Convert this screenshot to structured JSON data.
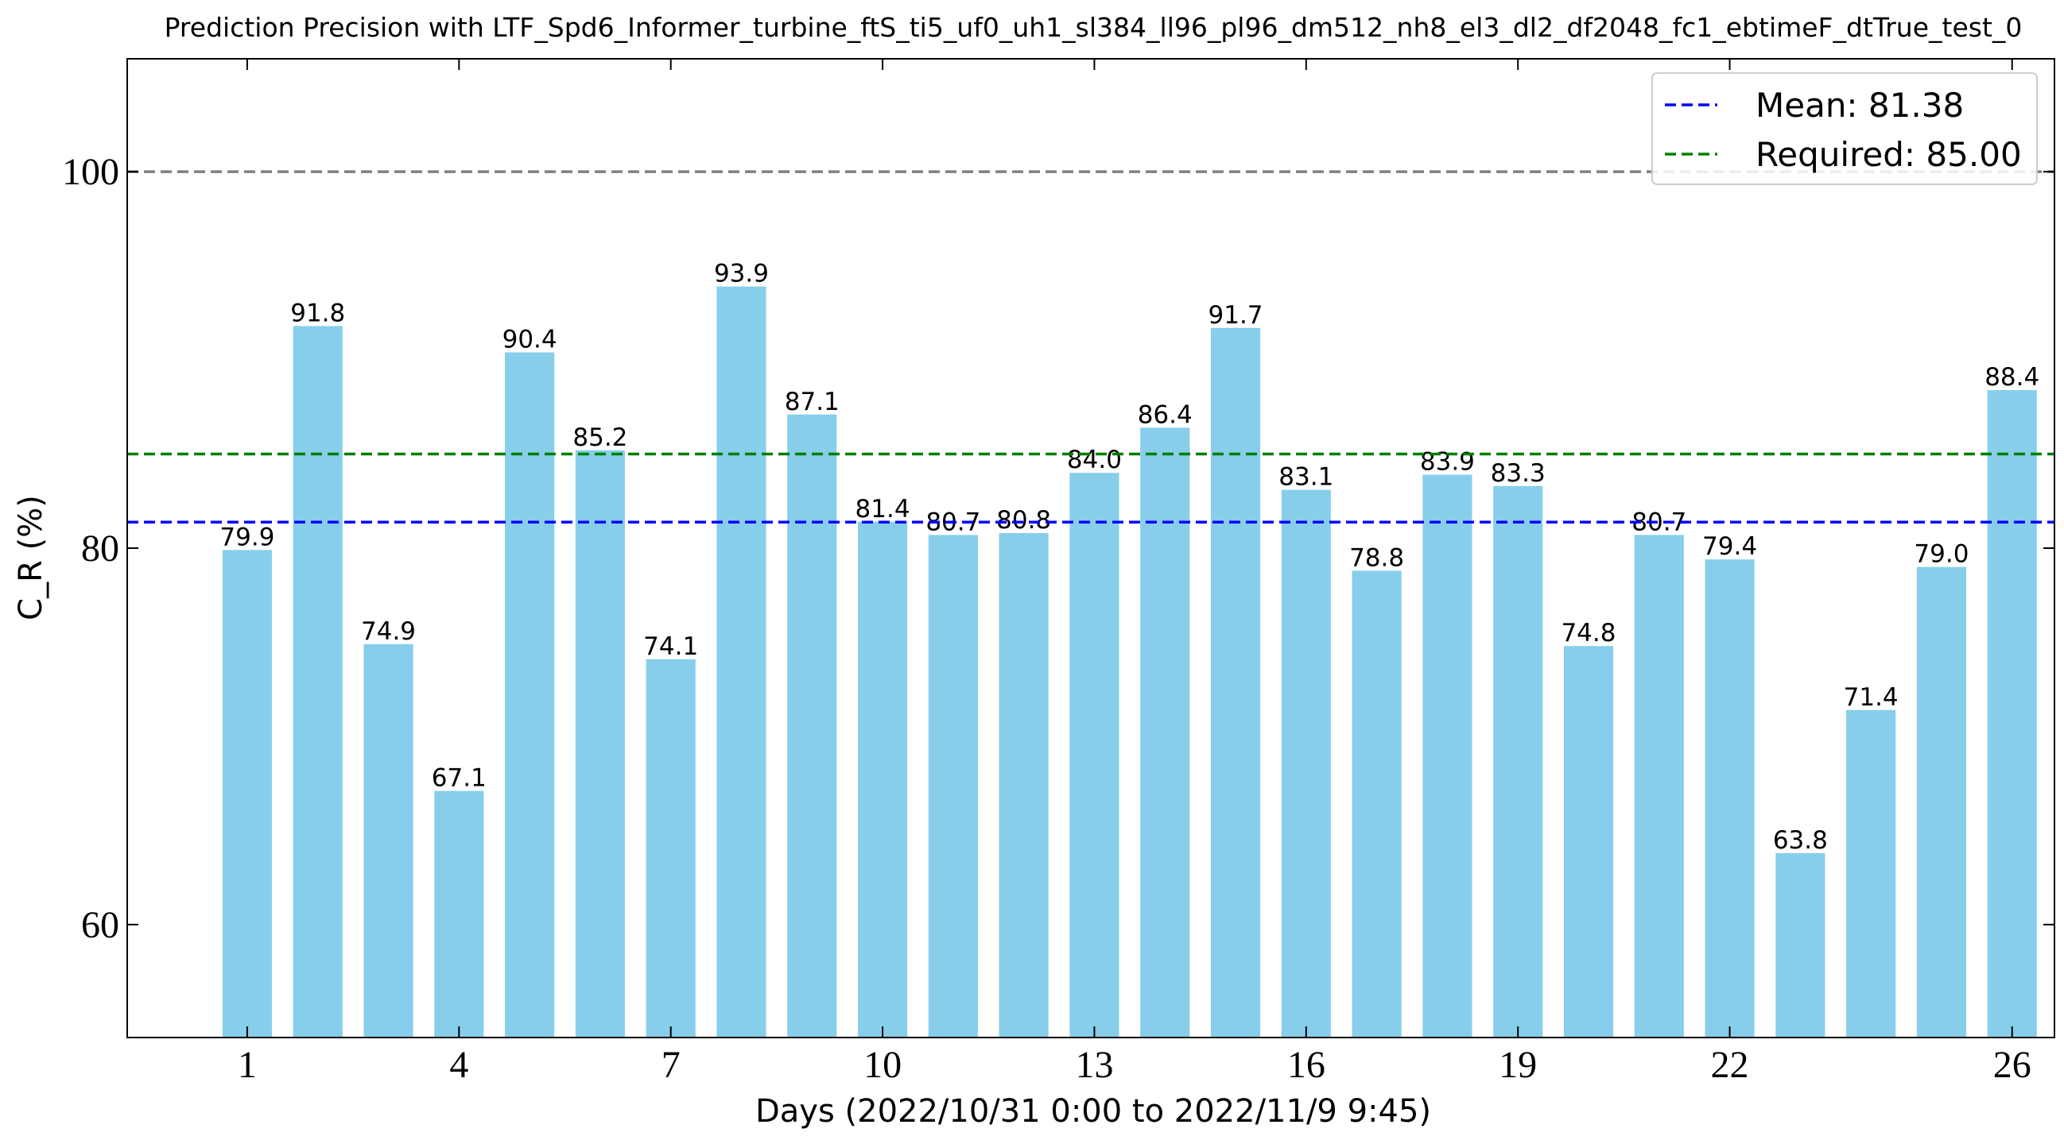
{
  "chart_data": {
    "type": "bar",
    "title": "Prediction Precision with LTF_Spd6_Informer_turbine_ftS_ti5_uf0_uh1_sl384_ll96_pl96_dm512_nh8_el3_dl2_df2048_fc1_ebtimeF_dtTrue_test_0",
    "xlabel": "Days (2022/10/31 0:00 to 2022/11/9 9:45)",
    "ylabel": "C_R (%)",
    "categories": [
      1,
      2,
      3,
      4,
      5,
      6,
      7,
      8,
      9,
      10,
      11,
      12,
      13,
      14,
      15,
      16,
      17,
      18,
      19,
      20,
      21,
      22,
      23,
      24,
      25,
      26
    ],
    "values": [
      79.9,
      91.8,
      74.9,
      67.1,
      90.4,
      85.2,
      74.1,
      93.9,
      87.1,
      81.4,
      80.7,
      80.8,
      84.0,
      86.4,
      91.7,
      83.1,
      78.8,
      83.9,
      83.3,
      74.8,
      80.7,
      79.4,
      63.8,
      71.4,
      79.0,
      88.4
    ],
    "value_labels": [
      "79.9",
      "91.8",
      "74.9",
      "67.1",
      "90.4",
      "85.2",
      "74.1",
      "93.9",
      "87.1",
      "81.4",
      "80.7",
      "80.8",
      "84.0",
      "86.4",
      "91.7",
      "83.1",
      "78.8",
      "83.9",
      "83.3",
      "74.8",
      "80.7",
      "79.4",
      "63.8",
      "71.4",
      "79.0",
      "88.4"
    ],
    "xticks": [
      1,
      4,
      7,
      10,
      13,
      16,
      19,
      22,
      26
    ],
    "xtick_labels": [
      "1",
      "4",
      "7",
      "10",
      "13",
      "16",
      "19",
      "22",
      "26"
    ],
    "yticks": [
      60,
      80,
      100
    ],
    "ytick_labels": [
      "60",
      "80",
      "100"
    ],
    "xlim": [
      -0.7,
      26.6
    ],
    "ylim": [
      54,
      106
    ],
    "bar_color": "#87ceeb",
    "reference_lines": [
      {
        "name": "Mean: 81.38",
        "value": 81.38,
        "color": "#0000ff",
        "style": "dashed",
        "in_legend": true
      },
      {
        "name": "Required: 85.00",
        "value": 85.0,
        "color": "#008000",
        "style": "dashed",
        "in_legend": true
      },
      {
        "value": 100,
        "color": "#808080",
        "style": "dashed",
        "in_legend": false
      }
    ],
    "legend": {
      "position": "top-right",
      "entries": [
        "Mean: 81.38",
        "Required: 85.00"
      ]
    },
    "grid": false
  }
}
